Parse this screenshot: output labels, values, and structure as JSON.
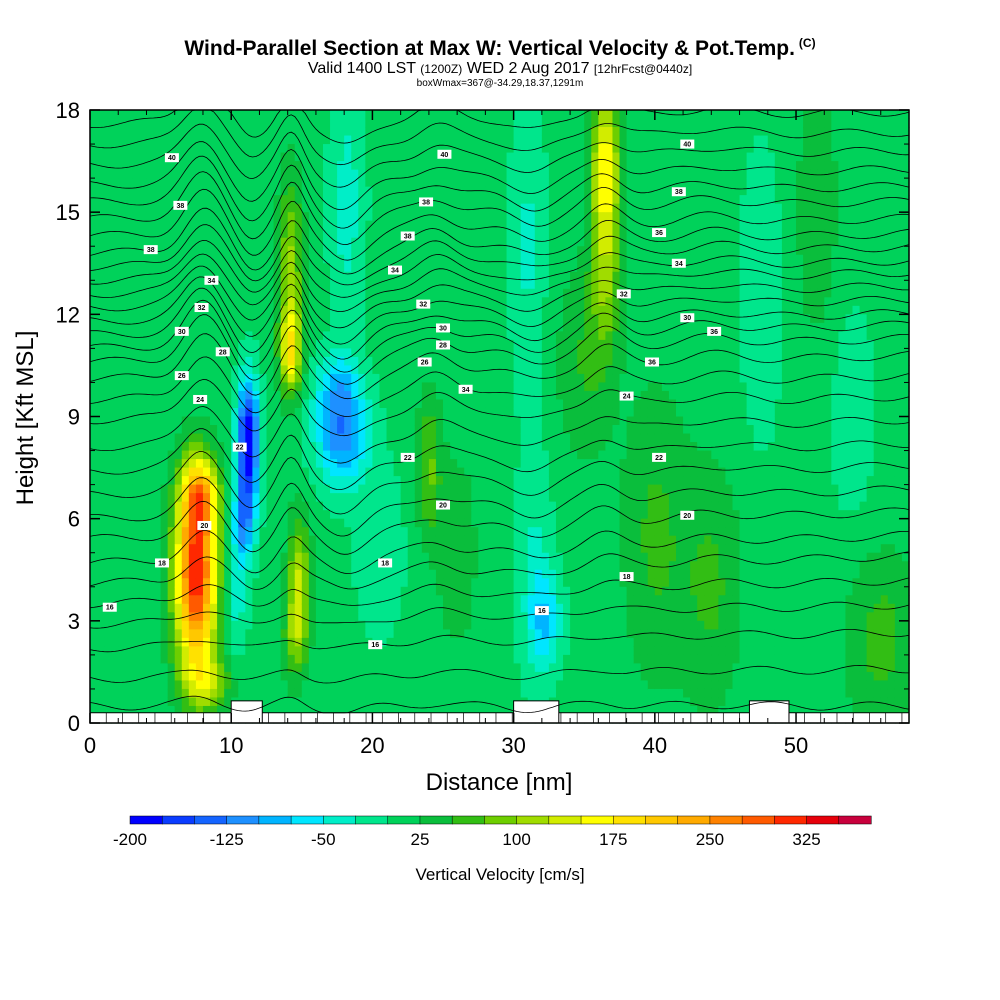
{
  "chart_data": {
    "type": "heatmap",
    "title": "Wind-Parallel Section at Max W: Vertical Velocity & Pot.Temp.",
    "title_mark": "(C)",
    "subtitle_main": "Valid 1400 LST",
    "subtitle_z": "(1200Z)",
    "subtitle_date": "WED 2 Aug 2017",
    "subtitle_fcst": "[12hrFcst@0440z]",
    "subtitle2": "boxWmax=367@-34.29,18.37,1291m",
    "xlabel": "Distance [nm]",
    "ylabel": "Height [Kft MSL]",
    "xlim": [
      0,
      58
    ],
    "ylim": [
      0,
      18
    ],
    "x_ticks": [
      "0",
      "10",
      "20",
      "30",
      "40",
      "50"
    ],
    "y_ticks": [
      "0",
      "3",
      "6",
      "9",
      "12",
      "15",
      "18"
    ],
    "colorbar": {
      "label": "Vertical Velocity [cm/s]",
      "tick_labels": [
        "-200",
        "-125",
        "-50",
        "25",
        "100",
        "175",
        "250",
        "325"
      ],
      "levels": [
        -200,
        -175,
        -150,
        -125,
        -100,
        -75,
        -50,
        -25,
        0,
        25,
        50,
        75,
        100,
        125,
        150,
        175,
        200,
        225,
        250,
        275,
        300,
        325,
        350
      ],
      "colors": [
        "#0000ff",
        "#0a3cff",
        "#1464ff",
        "#1e90ff",
        "#00b4ff",
        "#00e6ff",
        "#00eec8",
        "#00e68c",
        "#00d25a",
        "#0abe3c",
        "#32be14",
        "#6ece00",
        "#a0dc00",
        "#d2ec00",
        "#ffff00",
        "#ffe100",
        "#ffc800",
        "#ffaa00",
        "#ff8200",
        "#ff5a00",
        "#ff2800",
        "#e6000a",
        "#c8003c"
      ]
    },
    "w_features": [
      {
        "x": 7.5,
        "z": 4.3,
        "sx": 1.05,
        "sz": 1.9,
        "w": 310
      },
      {
        "x": 7.8,
        "z": 6.7,
        "sx": 0.9,
        "sz": 0.8,
        "w": 150
      },
      {
        "x": 8.2,
        "z": 1.2,
        "sx": 1.2,
        "sz": 0.6,
        "w": 90
      },
      {
        "x": 11.2,
        "z": 8.3,
        "sx": 0.55,
        "sz": 1.25,
        "w": -215
      },
      {
        "x": 10.9,
        "z": 6.0,
        "sx": 0.55,
        "sz": 0.9,
        "w": -110
      },
      {
        "x": 10.3,
        "z": 3.8,
        "sx": 0.6,
        "sz": 1.3,
        "w": -55
      },
      {
        "x": 14.2,
        "z": 10.9,
        "sx": 0.55,
        "sz": 0.9,
        "w": 150
      },
      {
        "x": 14.2,
        "z": 13.5,
        "sx": 0.6,
        "sz": 1.8,
        "w": 95
      },
      {
        "x": 14.8,
        "z": 4.2,
        "sx": 0.55,
        "sz": 1.3,
        "w": 110
      },
      {
        "x": 14.5,
        "z": 2.5,
        "sx": 0.6,
        "sz": 0.9,
        "w": 70
      },
      {
        "x": 17.8,
        "z": 8.5,
        "sx": 1.3,
        "sz": 1.05,
        "w": -125
      },
      {
        "x": 17.5,
        "z": 10.0,
        "sx": 1.1,
        "sz": 0.7,
        "w": -55
      },
      {
        "x": 18.2,
        "z": 15.2,
        "sx": 0.9,
        "sz": 2.8,
        "w": -45
      },
      {
        "x": 20.5,
        "z": 5.0,
        "sx": 1.4,
        "sz": 2.0,
        "w": -25
      },
      {
        "x": 24.0,
        "z": 7.5,
        "sx": 0.6,
        "sz": 1.5,
        "w": 70
      },
      {
        "x": 26.0,
        "z": 5.0,
        "sx": 1.0,
        "sz": 2.0,
        "w": 35
      },
      {
        "x": 31.0,
        "z": 14.0,
        "sx": 0.9,
        "sz": 3.0,
        "w": -40
      },
      {
        "x": 31.5,
        "z": 4.5,
        "sx": 0.9,
        "sz": 2.5,
        "w": -40
      },
      {
        "x": 32.3,
        "z": 3.0,
        "sx": 0.8,
        "sz": 1.0,
        "w": -70
      },
      {
        "x": 36.5,
        "z": 16.5,
        "sx": 0.7,
        "sz": 1.5,
        "w": 140
      },
      {
        "x": 36.5,
        "z": 13.5,
        "sx": 0.75,
        "sz": 1.8,
        "w": 90
      },
      {
        "x": 35.0,
        "z": 10.5,
        "sx": 1.4,
        "sz": 2.0,
        "w": 40
      },
      {
        "x": 40.0,
        "z": 5.5,
        "sx": 1.6,
        "sz": 3.0,
        "w": 45
      },
      {
        "x": 44.0,
        "z": 4.0,
        "sx": 1.5,
        "sz": 2.5,
        "w": 45
      },
      {
        "x": 47.5,
        "z": 12.5,
        "sx": 1.0,
        "sz": 3.0,
        "w": -35
      },
      {
        "x": 51.5,
        "z": 15.0,
        "sx": 1.0,
        "sz": 2.5,
        "w": 40
      },
      {
        "x": 54.0,
        "z": 9.0,
        "sx": 1.2,
        "sz": 2.5,
        "w": -25
      },
      {
        "x": 56.0,
        "z": 2.5,
        "sx": 1.8,
        "sz": 1.8,
        "w": 50
      }
    ],
    "w_background": 10,
    "terrain_blocks": [
      {
        "x0": 10.0,
        "x1": 12.2,
        "top": 0.65
      },
      {
        "x0": 30.0,
        "x1": 33.2,
        "top": 0.65
      },
      {
        "x0": 46.7,
        "x1": 49.5,
        "top": 0.65
      }
    ],
    "surface_top": 0.3,
    "theta_levels": [
      {
        "value": 12,
        "base": 0.5,
        "slope": 0.0
      },
      {
        "value": 13,
        "base": 1.3,
        "slope": 0.005
      },
      {
        "value": 14,
        "base": 2.2,
        "slope": 0.008
      },
      {
        "value": 15,
        "base": 2.9,
        "slope": 0.01
      },
      {
        "value": 16,
        "base": 3.5,
        "slope": 0.012
      },
      {
        "value": 17,
        "base": 4.1,
        "slope": 0.014
      },
      {
        "value": 18,
        "base": 4.7,
        "slope": 0.014
      },
      {
        "value": 19,
        "base": 5.4,
        "slope": 0.014
      },
      {
        "value": 20,
        "base": 6.0,
        "slope": 0.015
      },
      {
        "value": 21,
        "base": 6.7,
        "slope": 0.015
      },
      {
        "value": 22,
        "base": 7.4,
        "slope": 0.014
      },
      {
        "value": 23,
        "base": 8.1,
        "slope": 0.014
      },
      {
        "value": 24,
        "base": 8.9,
        "slope": 0.012
      },
      {
        "value": 25,
        "base": 9.5,
        "slope": 0.012
      },
      {
        "value": 26,
        "base": 10.1,
        "slope": 0.012
      },
      {
        "value": 27,
        "base": 10.6,
        "slope": 0.012
      },
      {
        "value": 28,
        "base": 11.0,
        "slope": 0.012
      },
      {
        "value": 29,
        "base": 11.4,
        "slope": 0.011
      },
      {
        "value": 30,
        "base": 11.8,
        "slope": 0.011
      },
      {
        "value": 31,
        "base": 12.2,
        "slope": 0.011
      },
      {
        "value": 32,
        "base": 12.6,
        "slope": 0.011
      },
      {
        "value": 33,
        "base": 13.0,
        "slope": 0.01
      },
      {
        "value": 34,
        "base": 13.4,
        "slope": 0.01
      },
      {
        "value": 35,
        "base": 13.8,
        "slope": 0.01
      },
      {
        "value": 36,
        "base": 14.3,
        "slope": 0.009
      },
      {
        "value": 37,
        "base": 14.8,
        "slope": 0.009
      },
      {
        "value": 38,
        "base": 15.3,
        "slope": 0.008
      },
      {
        "value": 39,
        "base": 15.8,
        "slope": 0.008
      },
      {
        "value": 40,
        "base": 16.4,
        "slope": 0.007
      },
      {
        "value": 41,
        "base": 17.0,
        "slope": 0.006
      },
      {
        "value": 42,
        "base": 17.6,
        "slope": 0.006
      }
    ],
    "theta_perturbations": [
      {
        "x": 8.0,
        "sx": 1.3,
        "amp": 1.2
      },
      {
        "x": 11.5,
        "sx": 1.0,
        "amp": -0.6
      },
      {
        "x": 14.3,
        "sx": 0.8,
        "amp": 0.9
      },
      {
        "x": 18.0,
        "sx": 1.5,
        "amp": -0.8
      },
      {
        "x": 24.5,
        "sx": 1.2,
        "amp": 0.4
      },
      {
        "x": 31.5,
        "sx": 1.5,
        "amp": -0.4
      },
      {
        "x": 36.5,
        "sx": 1.2,
        "amp": 0.5
      },
      {
        "x": 44.0,
        "sx": 2.0,
        "amp": 0.2
      }
    ],
    "theta_labels": [
      {
        "text": "40",
        "x": 5.8,
        "z": 16.6
      },
      {
        "text": "38",
        "x": 6.4,
        "z": 15.2
      },
      {
        "text": "38",
        "x": 4.3,
        "z": 13.9
      },
      {
        "text": "34",
        "x": 8.6,
        "z": 13.0
      },
      {
        "text": "32",
        "x": 7.9,
        "z": 12.2
      },
      {
        "text": "30",
        "x": 6.5,
        "z": 11.5
      },
      {
        "text": "28",
        "x": 9.4,
        "z": 10.9
      },
      {
        "text": "26",
        "x": 6.5,
        "z": 10.2
      },
      {
        "text": "24",
        "x": 7.8,
        "z": 9.5
      },
      {
        "text": "16",
        "x": 1.4,
        "z": 3.4
      },
      {
        "text": "18",
        "x": 5.1,
        "z": 4.7
      },
      {
        "text": "20",
        "x": 8.1,
        "z": 5.8
      },
      {
        "text": "22",
        "x": 10.6,
        "z": 8.1
      },
      {
        "text": "40",
        "x": 25.1,
        "z": 16.7
      },
      {
        "text": "38",
        "x": 23.8,
        "z": 15.3
      },
      {
        "text": "38",
        "x": 22.5,
        "z": 14.3
      },
      {
        "text": "34",
        "x": 21.6,
        "z": 13.3
      },
      {
        "text": "32",
        "x": 23.6,
        "z": 12.3
      },
      {
        "text": "30",
        "x": 25.0,
        "z": 11.6
      },
      {
        "text": "28",
        "x": 25.0,
        "z": 11.1
      },
      {
        "text": "26",
        "x": 23.7,
        "z": 10.6
      },
      {
        "text": "34",
        "x": 26.6,
        "z": 9.8
      },
      {
        "text": "22",
        "x": 22.5,
        "z": 7.8
      },
      {
        "text": "20",
        "x": 25.0,
        "z": 6.4
      },
      {
        "text": "18",
        "x": 20.9,
        "z": 4.7
      },
      {
        "text": "16",
        "x": 32.0,
        "z": 3.3
      },
      {
        "text": "16",
        "x": 20.2,
        "z": 2.3
      },
      {
        "text": "40",
        "x": 42.3,
        "z": 17.0
      },
      {
        "text": "38",
        "x": 41.7,
        "z": 15.6
      },
      {
        "text": "36",
        "x": 40.3,
        "z": 14.4
      },
      {
        "text": "34",
        "x": 41.7,
        "z": 13.5
      },
      {
        "text": "32",
        "x": 37.8,
        "z": 12.6
      },
      {
        "text": "30",
        "x": 42.3,
        "z": 11.9
      },
      {
        "text": "36",
        "x": 44.2,
        "z": 11.5
      },
      {
        "text": "36",
        "x": 39.8,
        "z": 10.6
      },
      {
        "text": "24",
        "x": 38.0,
        "z": 9.6
      },
      {
        "text": "22",
        "x": 40.3,
        "z": 7.8
      },
      {
        "text": "20",
        "x": 42.3,
        "z": 6.1
      },
      {
        "text": "18",
        "x": 38.0,
        "z": 4.3
      }
    ]
  }
}
